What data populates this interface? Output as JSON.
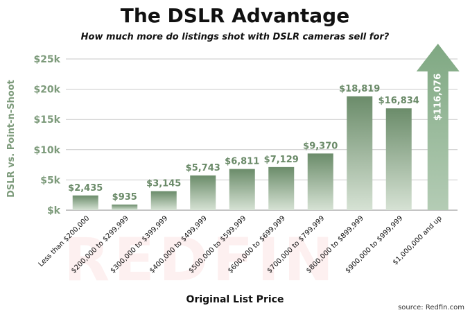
{
  "chart_data": {
    "type": "bar",
    "title": "The DSLR Advantage",
    "subtitle": "How much more do listings shot with DSLR cameras sell for?",
    "xlabel": "Original List Price",
    "ylabel": "DSLR vs. Point-n-Shoot",
    "ylim": [
      0,
      25000
    ],
    "yticks": [
      {
        "value": 0,
        "label": "$k"
      },
      {
        "value": 5000,
        "label": "$5k"
      },
      {
        "value": 10000,
        "label": "$10k"
      },
      {
        "value": 15000,
        "label": "$15k"
      },
      {
        "value": 20000,
        "label": "$20k"
      },
      {
        "value": 25000,
        "label": "$25k"
      }
    ],
    "grid": true,
    "categories": [
      "Less than $200,000",
      "$200,000 to $299,999",
      "$300,000 to $399,999",
      "$400,000 to $499,999",
      "$500,000 to $599,999",
      "$600,000 to $699,999",
      "$700,000 to $799,999",
      "$800,000 to $899,999",
      "$900,000 to $999,999",
      "$1,000,000 and up"
    ],
    "values": [
      2435,
      935,
      3145,
      5743,
      6811,
      7129,
      9370,
      18819,
      16834,
      116076
    ],
    "data_labels": [
      "$2,435",
      "$935",
      "$3,145",
      "$5,743",
      "$6,811",
      "$7,129",
      "$9,370",
      "$18,819",
      "$16,834",
      "$116,076"
    ],
    "annotation": "Last bar drawn as an upward arrow extending past the axis maximum",
    "colors": {
      "bar_top": "#6b8c6a",
      "bar_bottom": "#d6e2d4",
      "arrow": "#7fa882",
      "axis_text": "#7c9a7a",
      "label": "#6a8a68"
    }
  },
  "watermark": "REDFIN",
  "source": "source: Redfin.com"
}
